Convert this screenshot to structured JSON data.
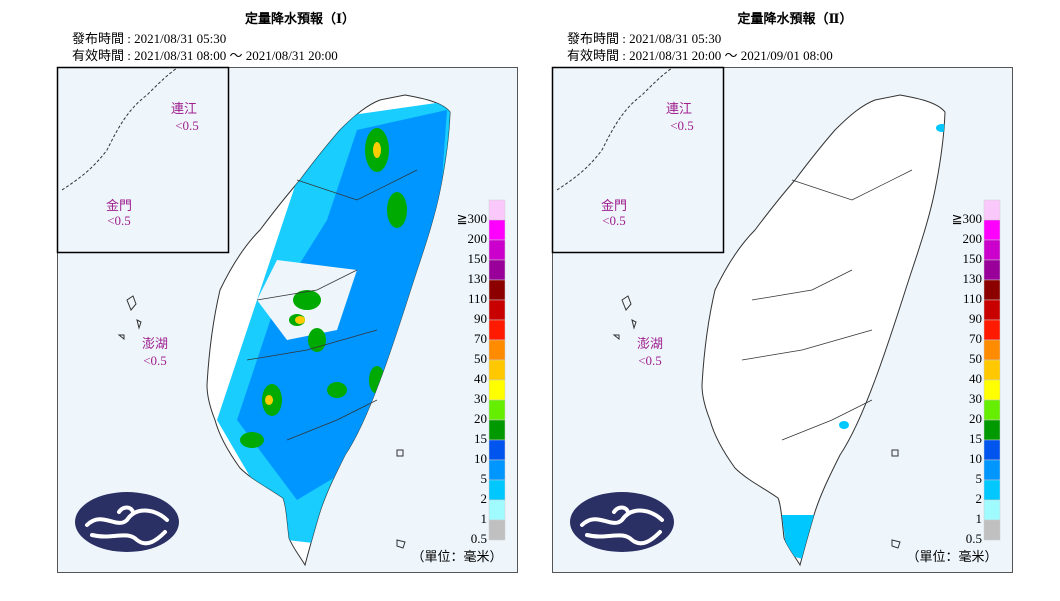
{
  "panels": [
    {
      "title": "定量降水預報（Ⅰ）",
      "issue_time": "發布時間 : 2021/08/31 05:30",
      "valid_time": "有效時間 : 2021/08/31 08:00 ～ 2021/08/31 20:00",
      "places": [
        {
          "name": "連江",
          "value": "<0.5"
        },
        {
          "name": "金門",
          "value": "<0.5"
        },
        {
          "name": "澎湖",
          "value": "<0.5"
        }
      ]
    },
    {
      "title": "定量降水預報（Ⅱ）",
      "issue_time": "發布時間 : 2021/08/31 05:30",
      "valid_time": "有效時間 : 2021/08/31 20:00 ～ 2021/09/01 08:00",
      "places": [
        {
          "name": "連江",
          "value": "<0.5"
        },
        {
          "name": "金門",
          "value": "<0.5"
        },
        {
          "name": "澎湖",
          "value": "<0.5"
        }
      ]
    }
  ],
  "legend": {
    "unit": "（單位：毫米）",
    "items": [
      {
        "label": "≧300",
        "color": "#fbc8fb"
      },
      {
        "label": "200",
        "color": "#ff00ff"
      },
      {
        "label": "150",
        "color": "#cc00cc"
      },
      {
        "label": "130",
        "color": "#990099"
      },
      {
        "label": "110",
        "color": "#8c0000"
      },
      {
        "label": "90",
        "color": "#c80000"
      },
      {
        "label": "70",
        "color": "#ff1a00"
      },
      {
        "label": "50",
        "color": "#ff8c00"
      },
      {
        "label": "40",
        "color": "#ffc800"
      },
      {
        "label": "30",
        "color": "#ffff00"
      },
      {
        "label": "20",
        "color": "#66ee00"
      },
      {
        "label": "15",
        "color": "#009900"
      },
      {
        "label": "10",
        "color": "#0055ee"
      },
      {
        "label": "5",
        "color": "#0096ff"
      },
      {
        "label": "2",
        "color": "#00c8ff"
      },
      {
        "label": "1",
        "color": "#a0fbff"
      },
      {
        "label": "0.5",
        "color": "#c0c0c0"
      }
    ]
  }
}
